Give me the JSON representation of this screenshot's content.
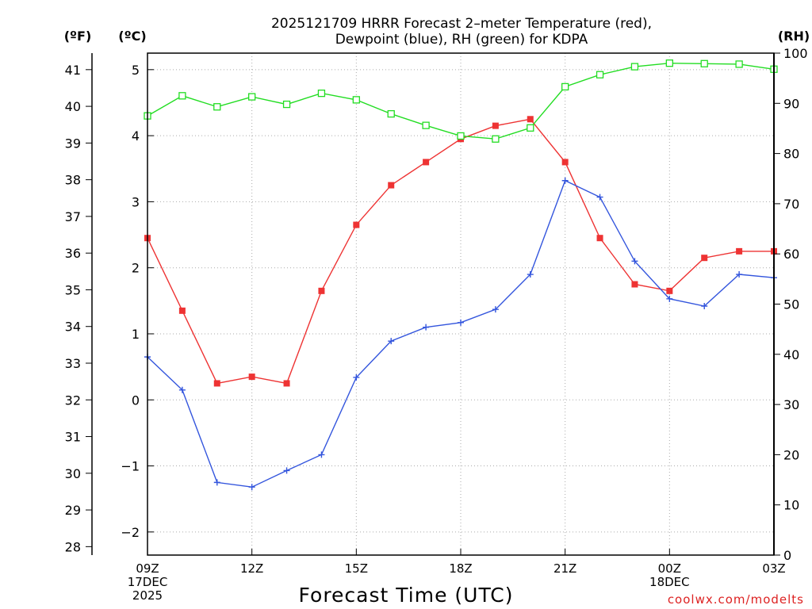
{
  "chart_data": {
    "type": "line",
    "title_line1": "2025121709 HRRR Forecast 2–meter Temperature (red),",
    "title_line2": "Dewpoint (blue), RH (green) for KDPA",
    "xlabel": "Forecast Time (UTC)",
    "credit": "coolwx.com/modelts",
    "units": {
      "fahrenheit": "(ºF)",
      "celsius": "(ºC)",
      "rh": "(RH)"
    },
    "x_hours": [
      0,
      1,
      2,
      3,
      4,
      5,
      6,
      7,
      8,
      9,
      10,
      11,
      12,
      13,
      14,
      15,
      16,
      17,
      18
    ],
    "x_ticks": [
      {
        "hour": 0,
        "lines": [
          "09Z",
          "17DEC",
          "2025"
        ]
      },
      {
        "hour": 3,
        "lines": [
          "12Z"
        ]
      },
      {
        "hour": 6,
        "lines": [
          "15Z"
        ]
      },
      {
        "hour": 9,
        "lines": [
          "18Z"
        ]
      },
      {
        "hour": 12,
        "lines": [
          "21Z"
        ]
      },
      {
        "hour": 15,
        "lines": [
          "00Z",
          "18DEC"
        ]
      },
      {
        "hour": 18,
        "lines": [
          "03Z"
        ]
      }
    ],
    "xlim": [
      0,
      18
    ],
    "celsius_ylim": [
      -2.35,
      5.25
    ],
    "celsius_ticks": [
      "5",
      "4",
      "3",
      "2",
      "1",
      "0",
      "−1",
      "−2"
    ],
    "celsius_tick_values": [
      5,
      4,
      3,
      2,
      1,
      0,
      -1,
      -2
    ],
    "fahrenheit_ticks": [
      "41",
      "40",
      "39",
      "38",
      "37",
      "36",
      "35",
      "34",
      "33",
      "32",
      "31",
      "30",
      "29",
      "28"
    ],
    "fahrenheit_tick_values": [
      41,
      40,
      39,
      38,
      37,
      36,
      35,
      34,
      33,
      32,
      31,
      30,
      29,
      28
    ],
    "rh_ylim": [
      0,
      100
    ],
    "rh_ticks": [
      "100",
      "90",
      "80",
      "70",
      "60",
      "50",
      "40",
      "30",
      "20",
      "10",
      "0"
    ],
    "rh_tick_values": [
      100,
      90,
      80,
      70,
      60,
      50,
      40,
      30,
      20,
      10,
      0
    ],
    "series": [
      {
        "name": "Temperature",
        "axis": "celsius",
        "color": "#ee3333",
        "marker": "filled-square",
        "values": [
          2.45,
          1.35,
          0.25,
          0.35,
          0.25,
          1.65,
          2.65,
          3.25,
          3.6,
          3.95,
          4.15,
          4.25,
          3.6,
          2.45,
          1.75,
          1.65,
          2.15,
          2.25,
          2.25
        ]
      },
      {
        "name": "Dewpoint",
        "axis": "celsius",
        "color": "#3355dd",
        "marker": "plus",
        "values": [
          0.65,
          0.15,
          -1.25,
          -1.32,
          -1.07,
          -0.83,
          0.34,
          0.89,
          1.1,
          1.17,
          1.37,
          1.9,
          3.32,
          3.07,
          2.1,
          1.53,
          1.42,
          1.9,
          1.85
        ]
      },
      {
        "name": "RH",
        "axis": "rh",
        "color": "#22dd22",
        "marker": "open-square",
        "values": [
          87.5,
          91.5,
          89.3,
          91.3,
          89.8,
          92.0,
          90.7,
          87.9,
          85.6,
          83.5,
          82.9,
          85.1,
          93.3,
          95.7,
          97.3,
          98.0,
          97.9,
          97.8,
          96.8
        ]
      }
    ]
  }
}
